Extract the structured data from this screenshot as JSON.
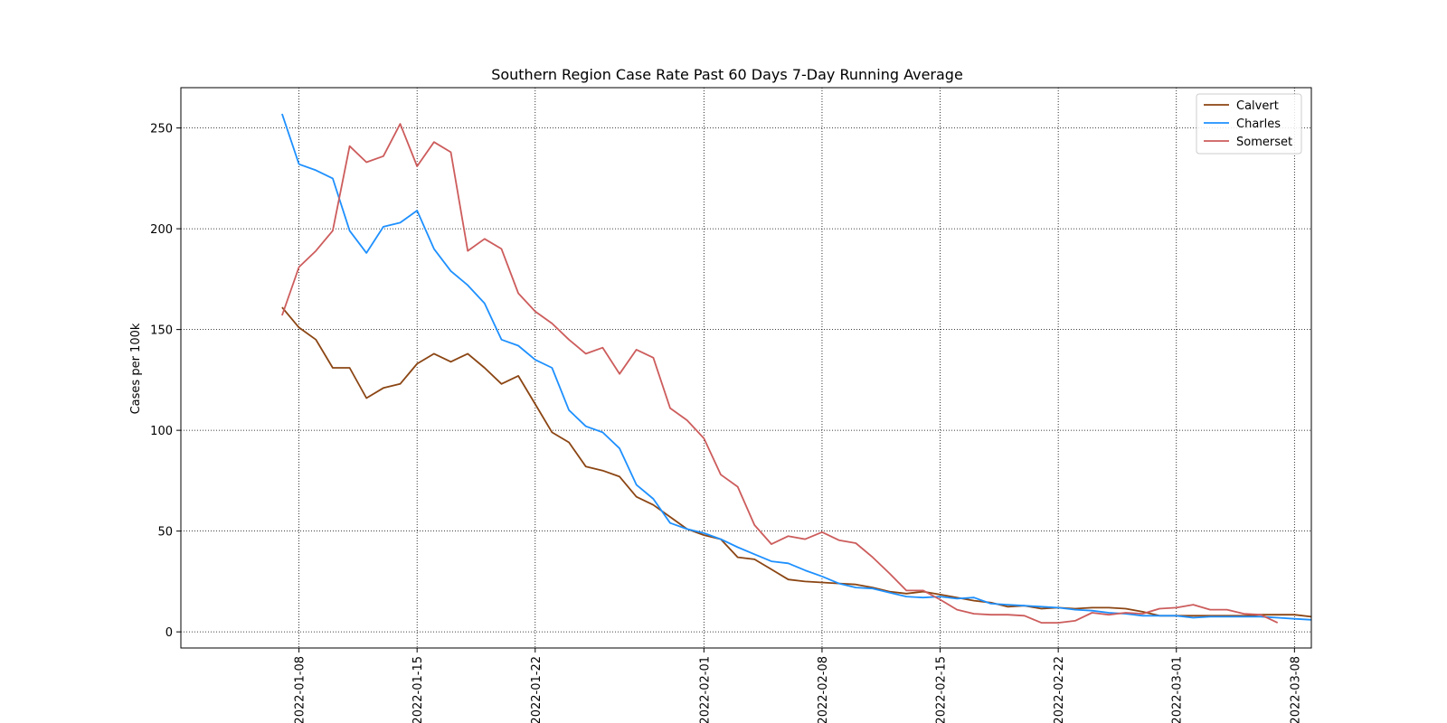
{
  "chart_data": {
    "type": "line",
    "title": "Southern Region Case Rate  Past 60 Days 7-Day Running Average",
    "xlabel": "",
    "ylabel": "Cases per 100k",
    "xlim": [
      "2022-01-01",
      "2022-03-09"
    ],
    "ylim": [
      -8,
      270
    ],
    "x_ticks": [
      "2022-01-08",
      "2022-01-15",
      "2022-01-22",
      "2022-02-01",
      "2022-02-08",
      "2022-02-15",
      "2022-02-22",
      "2022-03-01",
      "2022-03-08"
    ],
    "y_ticks": [
      0,
      50,
      100,
      150,
      200,
      250
    ],
    "grid": true,
    "legend_position": "top-right",
    "x_start": "2022-01-07",
    "series": [
      {
        "name": "Calvert",
        "color": "#8B4513",
        "values": [
          161,
          151,
          145,
          131,
          131,
          116,
          121,
          123,
          133,
          138,
          134,
          138,
          131,
          123,
          127,
          113,
          99,
          94,
          82,
          80,
          77,
          67,
          63,
          57,
          51,
          48,
          46,
          37,
          36,
          31,
          26,
          25,
          24.5,
          24,
          23.5,
          22,
          20,
          19,
          20,
          18.5,
          17,
          15.5,
          14.5,
          12.5,
          13,
          11.5,
          12,
          11.5,
          12,
          12,
          11.5,
          10,
          8,
          8,
          8,
          8,
          8,
          8,
          8.5,
          8.5,
          8.5,
          7.5
        ]
      },
      {
        "name": "Charles",
        "color": "#1E90FF",
        "values": [
          257,
          232,
          229,
          225,
          199,
          188,
          201,
          203,
          209,
          190,
          179,
          172,
          163,
          145,
          142,
          135,
          131,
          110,
          102,
          99,
          91,
          73,
          66,
          54,
          51,
          49,
          46,
          42,
          38.5,
          35,
          34,
          30.5,
          27.5,
          24,
          22,
          21.5,
          19.5,
          17.5,
          17,
          17.5,
          16.5,
          17,
          14,
          13.5,
          13,
          12.5,
          12,
          11,
          10.5,
          9.5,
          9,
          8,
          8,
          8,
          7,
          7.5,
          7.5,
          7.5,
          7.5,
          7,
          6.5,
          6
        ]
      },
      {
        "name": "Somerset",
        "color": "#CD5C5C",
        "values": [
          157,
          181,
          189,
          199,
          241,
          233,
          236,
          252,
          231,
          243,
          238,
          189,
          195,
          190,
          168,
          159,
          153,
          145,
          138,
          141,
          128,
          140,
          136,
          111,
          105,
          96,
          78,
          72,
          53,
          43.5,
          47.5,
          46,
          49.5,
          45.5,
          44,
          37,
          29,
          20.5,
          20.5,
          16,
          11,
          9,
          8.5,
          8.5,
          8,
          4.5,
          4.5,
          5.5,
          9.5,
          8.5,
          9.5,
          9,
          11.5,
          12,
          13.5,
          11,
          11,
          9,
          8.5,
          4.5
        ]
      }
    ]
  }
}
